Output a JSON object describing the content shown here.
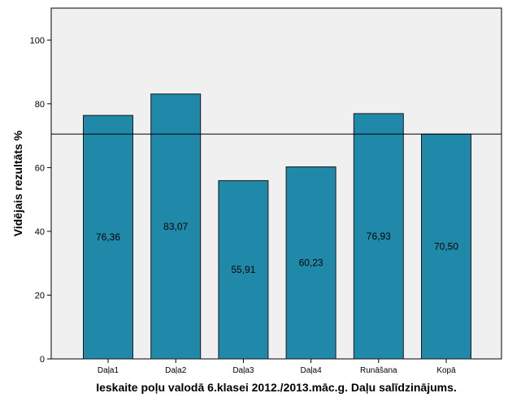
{
  "chart_data": {
    "type": "bar",
    "categories": [
      "Daļa1",
      "Daļa2",
      "Daļa3",
      "Daļa4",
      "Runāšana",
      "Kopā"
    ],
    "values": [
      76.36,
      83.07,
      55.91,
      60.23,
      76.93,
      70.5
    ],
    "data_labels": [
      "76,36",
      "83,07",
      "55,91",
      "60,23",
      "76,93",
      "70,50"
    ],
    "reference_line": 70.5,
    "title": "",
    "xlabel": "Ieskaite poļu valodā 6.klasei 2012./2013.māc.g. Daļu salīdzinājums.",
    "ylabel": "Vidējais rezultāts %",
    "ylim": [
      0,
      110
    ],
    "yticks": [
      0,
      20,
      40,
      60,
      80,
      100
    ],
    "grid": false,
    "legend": "none",
    "colors": {
      "bar_fill": "#2089a9",
      "bar_stroke": "#1a1a1a",
      "plot_background": "#f0f0f0",
      "reference_line": "#000000"
    }
  }
}
